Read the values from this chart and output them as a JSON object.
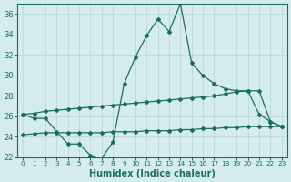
{
  "xlabel": "Humidex (Indice chaleur)",
  "ylim": [
    22,
    37
  ],
  "yticks": [
    22,
    24,
    26,
    28,
    30,
    32,
    34,
    36
  ],
  "bg_color": "#d4ecec",
  "line_color": "#1a6e5e",
  "grid_color": "#c0dada",
  "humidex": [
    26.2,
    25.8,
    25.8,
    24.5,
    23.3,
    23.3,
    22.2,
    21.9,
    23.5,
    29.2,
    31.8,
    33.9,
    35.5,
    34.3,
    37.0,
    31.2,
    30.0,
    29.2,
    28.7,
    28.5,
    28.5,
    26.2,
    25.5,
    25.0
  ],
  "upper_line": [
    26.2,
    26.3,
    26.5,
    26.6,
    26.7,
    26.8,
    26.9,
    27.0,
    27.1,
    27.2,
    27.3,
    27.4,
    27.5,
    27.6,
    27.7,
    27.8,
    27.9,
    28.0,
    28.2,
    28.4,
    28.5,
    28.5,
    25.5,
    25.0
  ],
  "lower_line": [
    24.2,
    24.3,
    24.4,
    24.4,
    24.4,
    24.4,
    24.4,
    24.4,
    24.5,
    24.5,
    24.5,
    24.6,
    24.6,
    24.6,
    24.7,
    24.7,
    24.8,
    24.8,
    24.9,
    24.9,
    25.0,
    25.0,
    25.0,
    25.0
  ]
}
